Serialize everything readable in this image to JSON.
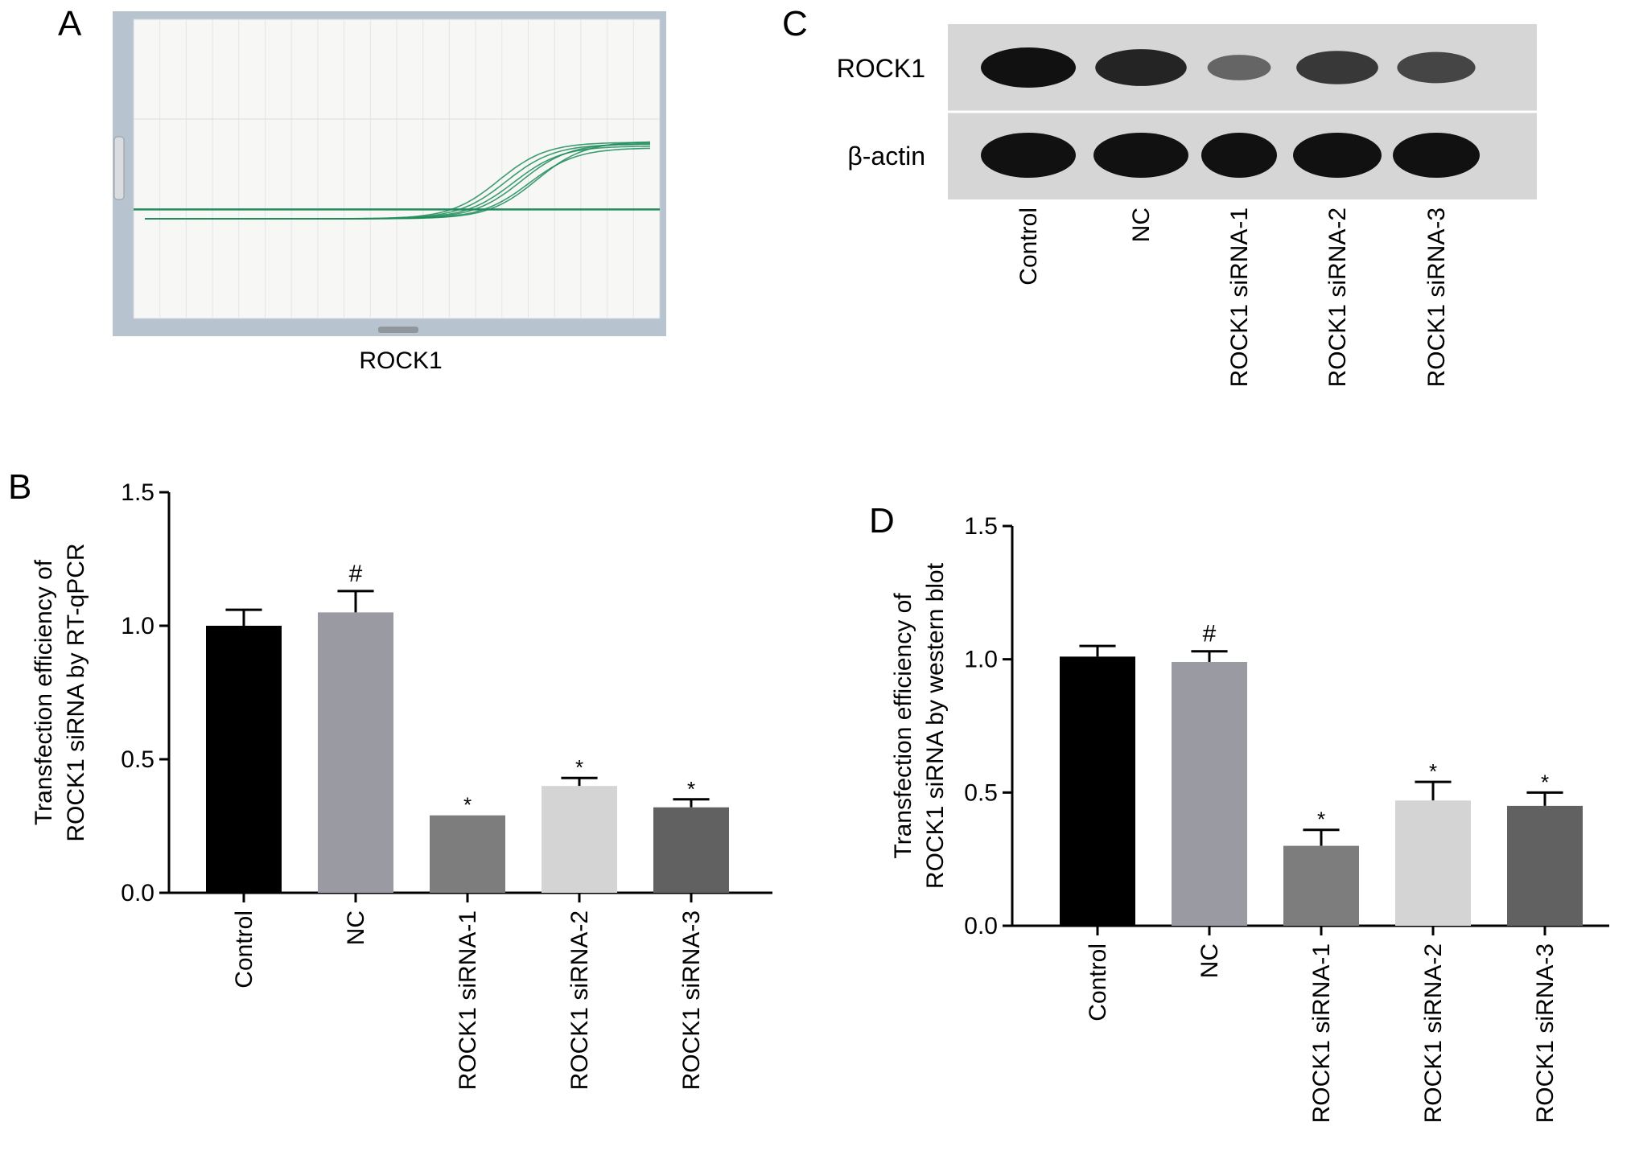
{
  "panels": {
    "a": {
      "letter": "A",
      "caption": "ROCK1"
    },
    "b": {
      "letter": "B"
    },
    "c": {
      "letter": "C"
    },
    "d": {
      "letter": "D"
    }
  },
  "colors": {
    "control": "#000000",
    "nc": "#9a9aa3",
    "sirna1": "#7d7d7d",
    "sirna2": "#d4d4d4",
    "sirna3": "#616161",
    "amp_curve": "#1f8c5a",
    "amp_frame": "#b7c3cf",
    "blot_bg": "#d6d6d6",
    "band": "#111111"
  },
  "blot": {
    "rows": [
      {
        "label": "ROCK1",
        "intensity": [
          1.0,
          0.85,
          0.35,
          0.7,
          0.6
        ]
      },
      {
        "label": "β-actin",
        "intensity": [
          1.0,
          1.0,
          1.0,
          1.0,
          1.0
        ]
      }
    ],
    "lanes": [
      "Control",
      "NC",
      "ROCK1 siRNA-1",
      "ROCK1 siRNA-2",
      "ROCK1 siRNA-3"
    ]
  },
  "chart_data": [
    {
      "panel": "A",
      "type": "line",
      "xlabel": "ROCK1",
      "description_curves": "amplification",
      "curves": [
        {
          "midpoint": 28.0,
          "plateau": 0.82
        },
        {
          "midpoint": 28.6,
          "plateau": 0.8
        },
        {
          "midpoint": 29.2,
          "plateau": 0.78
        },
        {
          "midpoint": 29.8,
          "plateau": 0.81
        },
        {
          "midpoint": 30.4,
          "plateau": 0.76
        },
        {
          "midpoint": 31.0,
          "plateau": 0.83
        }
      ],
      "threshold": 0.1,
      "xlim": [
        0,
        40
      ]
    },
    {
      "panel": "B",
      "type": "bar",
      "ylabel": [
        "Transfection efficiency of",
        "ROCK1 siRNA by RT-qPCR"
      ],
      "categories": [
        "Control",
        "NC",
        "ROCK1 siRNA-1",
        "ROCK1 siRNA-2",
        "ROCK1 siRNA-3"
      ],
      "values": [
        1.0,
        1.05,
        0.29,
        0.4,
        0.32
      ],
      "errors": [
        0.06,
        0.08,
        0.0,
        0.03,
        0.03
      ],
      "annotations": [
        "",
        "#",
        "*",
        "*",
        "*"
      ],
      "ylim": [
        0,
        1.5
      ],
      "yticks": [
        "0.0",
        "0.5",
        "1.0",
        "1.5"
      ]
    },
    {
      "panel": "D",
      "type": "bar",
      "ylabel": [
        "Transfection efficiency of",
        "ROCK1 siRNA by western blot"
      ],
      "categories": [
        "Control",
        "NC",
        "ROCK1 siRNA-1",
        "ROCK1 siRNA-2",
        "ROCK1 siRNA-3"
      ],
      "values": [
        1.01,
        0.99,
        0.3,
        0.47,
        0.45
      ],
      "errors": [
        0.04,
        0.04,
        0.06,
        0.07,
        0.05
      ],
      "annotations": [
        "",
        "#",
        "*",
        "*",
        "*"
      ],
      "ylim": [
        0,
        1.5
      ],
      "yticks": [
        "0.0",
        "0.5",
        "1.0",
        "1.5"
      ]
    }
  ]
}
